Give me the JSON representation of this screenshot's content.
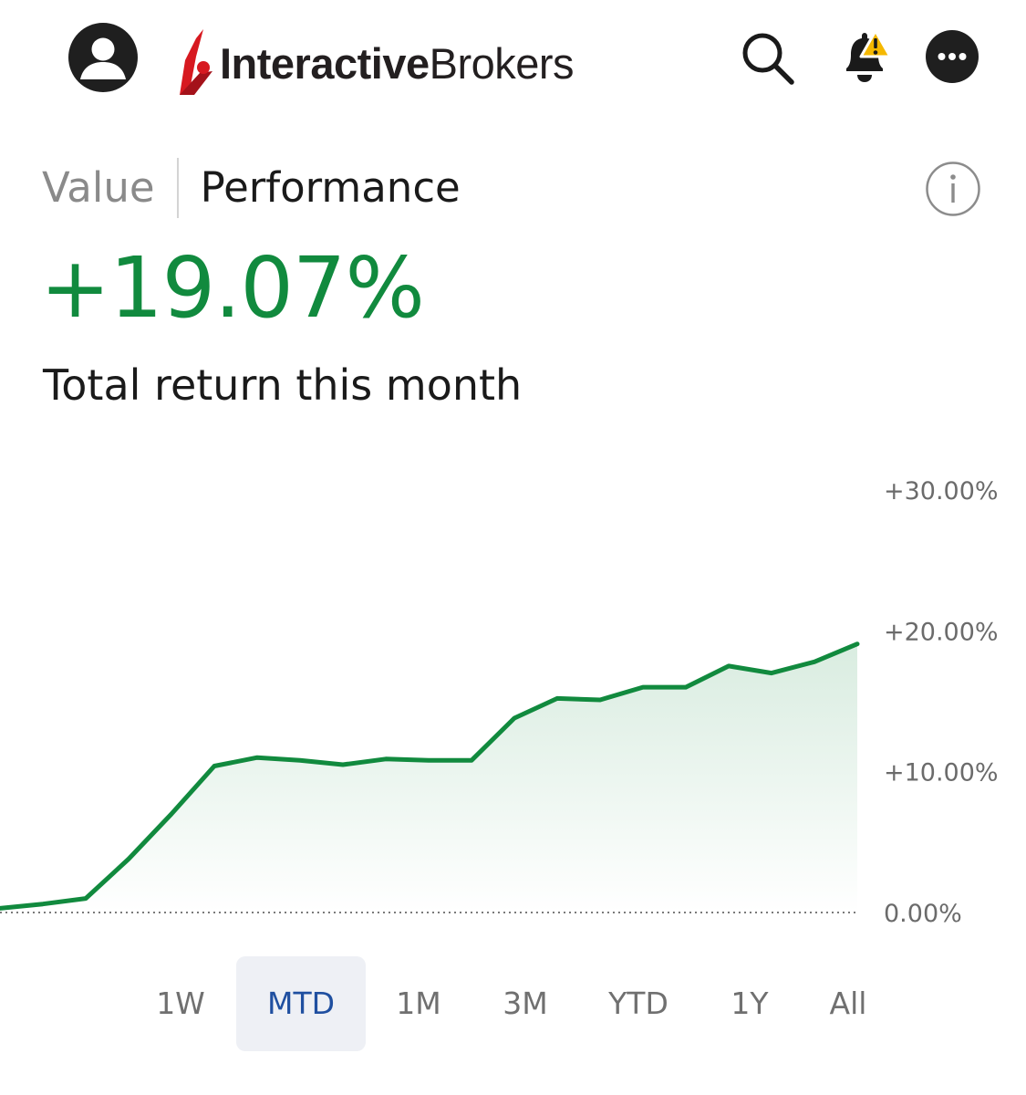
{
  "header": {
    "brand_bold": "Interactive",
    "brand_light": "Brokers",
    "icons": [
      "avatar-icon",
      "search-icon",
      "bell-alert-icon",
      "more-icon"
    ],
    "alert_color": "#f5b800"
  },
  "tabs": [
    {
      "label": "Value",
      "active": false
    },
    {
      "label": "Performance",
      "active": true
    }
  ],
  "summary": {
    "return_value": "+19.07%",
    "caption": "Total return this month",
    "positive_color": "#118a3e"
  },
  "chart_data": {
    "type": "area",
    "title": "",
    "xlabel": "",
    "ylabel": "",
    "ylim": [
      0,
      30
    ],
    "y_ticks": [
      "+30.00%",
      "+20.00%",
      "+10.00%",
      "0.00%"
    ],
    "y_tick_values": [
      30,
      20,
      10,
      0
    ],
    "baseline_style": "dotted",
    "line_color": "#118a3e",
    "grid": false,
    "series": [
      {
        "values": [
          0.3,
          0.6,
          1.0,
          3.8,
          7.0,
          10.4,
          11.0,
          10.8,
          10.5,
          10.9,
          10.8,
          10.8,
          13.8,
          15.2,
          15.1,
          16.0,
          16.0,
          17.5,
          17.0,
          17.8,
          19.07
        ]
      }
    ]
  },
  "ranges": [
    {
      "label": "1W",
      "active": false
    },
    {
      "label": "MTD",
      "active": true
    },
    {
      "label": "1M",
      "active": false
    },
    {
      "label": "3M",
      "active": false
    },
    {
      "label": "YTD",
      "active": false
    },
    {
      "label": "1Y",
      "active": false
    },
    {
      "label": "All",
      "active": false
    }
  ]
}
